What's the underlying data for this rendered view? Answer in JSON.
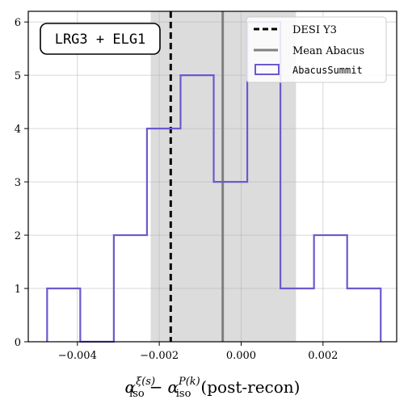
{
  "chart_data": {
    "type": "bar",
    "title": "",
    "xlabel_main": "α",
    "xlabel_sub1": "iso",
    "xlabel_sup1": "ξ(s)",
    "xlabel_minus": "−",
    "xlabel_sub2": "iso",
    "xlabel_sup2": "P(k)",
    "xlabel_tail": "(post-recon)",
    "ylabel": "",
    "xlim": [
      -0.0052,
      0.0038
    ],
    "ylim": [
      0,
      6.2
    ],
    "grid": true,
    "legend_placement": "top-right",
    "xticks": [
      -0.004,
      -0.002,
      0.0,
      0.002
    ],
    "xtick_labels": [
      "−0.004",
      "−0.002",
      "0.000",
      "0.002"
    ],
    "yticks": [
      0,
      1,
      2,
      3,
      4,
      5,
      6
    ],
    "ytick_labels": [
      "0",
      "1",
      "2",
      "3",
      "4",
      "5",
      "6"
    ],
    "histogram": {
      "name": "AbacusSummit",
      "color": "#6a5acd",
      "bin_edges": [
        -0.00474,
        -0.00433,
        -0.00393,
        -0.00352,
        -0.00311,
        -0.0027,
        -0.0023,
        -0.00189,
        -0.00148,
        -0.00108,
        -0.00067,
        -0.00026,
        0.00015,
        0.00055,
        0.00096,
        0.00137,
        0.00178,
        0.00218,
        0.00259,
        0.003,
        0.00341
      ],
      "counts": [
        1,
        1,
        0,
        0,
        2,
        2,
        4,
        4,
        5,
        5,
        3,
        3,
        6,
        6,
        1,
        1,
        2,
        2,
        1,
        1
      ]
    },
    "desi_y3": {
      "name": "DESI Y3",
      "x": -0.00172,
      "color": "#000000"
    },
    "mean_abacus": {
      "name": "Mean Abacus",
      "x": -0.00045,
      "color": "#808080"
    },
    "shaded_band": {
      "x0": -0.00221,
      "x1": 0.00134,
      "color": "#dcdcdc"
    },
    "badge": "LRG3 + ELG1"
  }
}
